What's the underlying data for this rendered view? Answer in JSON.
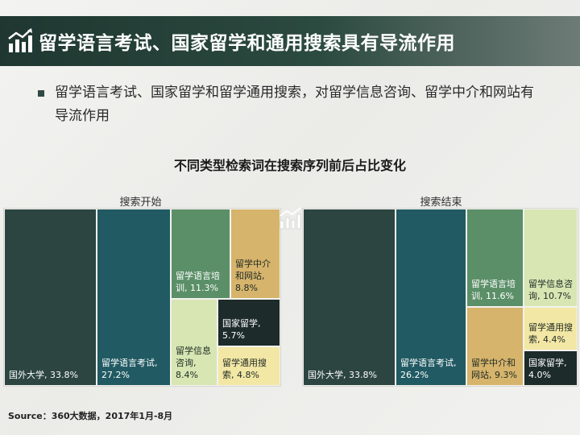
{
  "header": {
    "title": "留学语言考试、国家留学和通用搜索具有导流作用"
  },
  "bullet": {
    "text": "留学语言考试、国家留学和留学通用搜索，对留学信息咨询、留学中介和网站有导流作用"
  },
  "chart_data": {
    "type": "treemap",
    "title": "不同类型检索词在搜索序列前后占比变化",
    "unit": "%",
    "panels": [
      {
        "name": "搜索开始",
        "items": [
          {
            "label": "国外大学, 33.8%",
            "value": 33.8,
            "color": "#2c4540"
          },
          {
            "label": "留学语言考试, 27.2%",
            "value": 27.2,
            "color": "#215a63"
          },
          {
            "label": "留学语言培训, 11.3%",
            "value": 11.3,
            "color": "#5b8f68"
          },
          {
            "label": "留学中介和网站, 8.8%",
            "value": 8.8,
            "color": "#d6b46c"
          },
          {
            "label": "国家留学, 5.7%",
            "value": 5.7,
            "color": "#1d2b2a"
          },
          {
            "label": "留学信息咨询, 8.4%",
            "value": 8.4,
            "color": "#d7e6b3"
          },
          {
            "label": "留学通用搜索, 4.8%",
            "value": 4.8,
            "color": "#f3e7a5"
          }
        ]
      },
      {
        "name": "搜索结束",
        "items": [
          {
            "label": "国外大学, 33.8%",
            "value": 33.8,
            "color": "#2c4540"
          },
          {
            "label": "留学语言考试, 26.2%",
            "value": 26.2,
            "color": "#215a63"
          },
          {
            "label": "留学语言培训, 11.6%",
            "value": 11.6,
            "color": "#5b8f68"
          },
          {
            "label": "留学信息咨询, 10.7%",
            "value": 10.7,
            "color": "#d7e6b3"
          },
          {
            "label": "留学中介和网站, 9.3%",
            "value": 9.3,
            "color": "#d6b46c"
          },
          {
            "label": "留学通用搜索, 4.4%",
            "value": 4.4,
            "color": "#f3e7a5"
          },
          {
            "label": "国家留学, 4.0%",
            "value": 4.0,
            "color": "#1d2b2a"
          }
        ]
      }
    ]
  },
  "source": "Source：360大数据，2017年1月-8月",
  "icons": [
    "bar-chart-trend-icon"
  ]
}
